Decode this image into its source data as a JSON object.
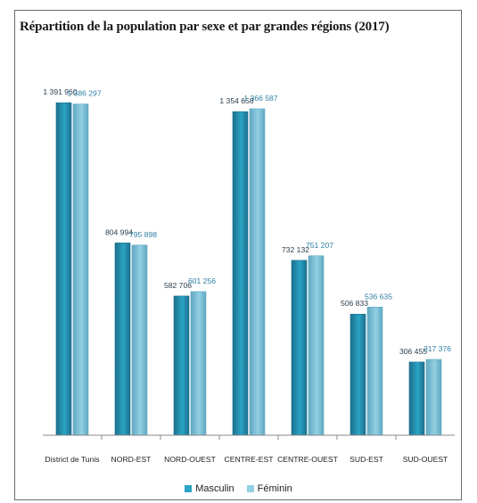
{
  "chart_data": {
    "type": "bar",
    "title": "Répartition de la population par sexe et par grandes régions (2017)",
    "categories": [
      "District de Tunis",
      "NORD-EST",
      "NORD-OUEST",
      "CENTRE-EST",
      "CENTRE-OUEST",
      "SUD-EST",
      "SUD-OUEST"
    ],
    "series": [
      {
        "name": "Masculin",
        "values": [
          1391960,
          804994,
          582706,
          1354658,
          732132,
          506833,
          306455
        ],
        "labels": [
          "1 391 960",
          "804 994",
          "582 706",
          "1 354 658",
          "732 132",
          "506 833",
          "306 455"
        ],
        "color": "#2aa3c4",
        "color_dark": "#1b6f8c"
      },
      {
        "name": "Féminin",
        "values": [
          1386297,
          795898,
          601256,
          1366587,
          751207,
          536635,
          317376
        ],
        "labels": [
          "1 386 297",
          "795 898",
          "601 256",
          "1 366 587",
          "751 207",
          "536 635",
          "317 376"
        ],
        "color": "#93cfe2",
        "color_dark": "#5fa8c2"
      }
    ],
    "ylim": [
      0,
      1400000
    ],
    "grid": false,
    "legend": "bottom"
  }
}
